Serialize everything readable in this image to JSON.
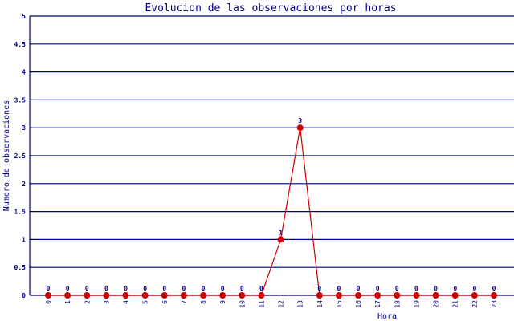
{
  "chart_data": {
    "type": "line",
    "title": "Evolucion de las observaciones por horas",
    "xlabel": "Hora",
    "ylabel": "Numero de observaciones",
    "categories": [
      "0",
      "1",
      "2",
      "3",
      "4",
      "5",
      "6",
      "7",
      "8",
      "9",
      "10",
      "11",
      "12",
      "13",
      "14",
      "15",
      "16",
      "17",
      "18",
      "19",
      "20",
      "21",
      "22",
      "23"
    ],
    "values": [
      0,
      0,
      0,
      0,
      0,
      0,
      0,
      0,
      0,
      0,
      0,
      0,
      1,
      3,
      0,
      0,
      0,
      0,
      0,
      0,
      0,
      0,
      0,
      0
    ],
    "ylim": [
      0,
      5
    ],
    "yticks": [
      "0",
      "0.5",
      "1",
      "1.5",
      "2",
      "2.5",
      "3",
      "3.5",
      "4",
      "4.5",
      "5"
    ],
    "grid": true,
    "data_labels": true,
    "colors": {
      "line": "#cc0000",
      "marker": "#cc0000",
      "grid": "#000080",
      "text": "#000080"
    }
  }
}
